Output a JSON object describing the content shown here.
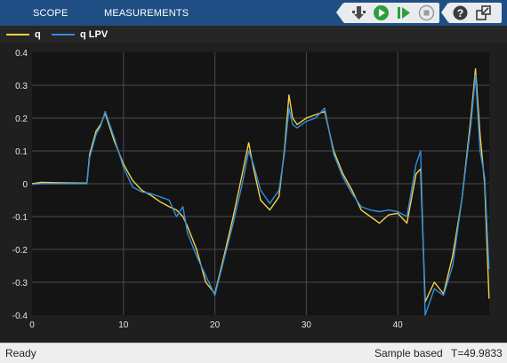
{
  "toolstrip": {
    "tabs": [
      {
        "label": "SCOPE"
      },
      {
        "label": "MEASUREMENTS"
      }
    ],
    "buttons": [
      {
        "name": "signal-select-icon",
        "color": "#4a4a4a"
      },
      {
        "name": "run-icon",
        "color": "#2e9e3e"
      },
      {
        "name": "step-forward-icon",
        "color": "#2e9e3e"
      },
      {
        "name": "stop-icon",
        "color": "#9a9a9a"
      },
      {
        "name": "help-icon",
        "color": "#3a3a3a"
      },
      {
        "name": "undock-icon",
        "color": "#3a3a3a"
      }
    ]
  },
  "legend": [
    {
      "label": "q",
      "color": "#f5d04a"
    },
    {
      "label": "q LPV",
      "color": "#2f8fe0"
    }
  ],
  "status": {
    "ready": "Ready",
    "mode": "Sample based",
    "time": "T=49.9833"
  },
  "chart_data": {
    "type": "line",
    "title": "",
    "xlabel": "",
    "ylabel": "",
    "xlim": [
      0,
      50
    ],
    "ylim": [
      -0.4,
      0.4
    ],
    "xticks": [
      0,
      10,
      20,
      30,
      40
    ],
    "yticks": [
      0.4,
      0.3,
      0.2,
      0.1,
      0,
      -0.1,
      -0.2,
      -0.3,
      -0.4
    ],
    "grid": true,
    "background": "#141414",
    "series": [
      {
        "name": "q",
        "color": "#f5d04a",
        "x": [
          0,
          1,
          3,
          6,
          6.3,
          7,
          7.5,
          8,
          9,
          10,
          11,
          12,
          13,
          14,
          15,
          15.8,
          16.5,
          17,
          18,
          19,
          20,
          21,
          22,
          23,
          23.7,
          24.2,
          25,
          26,
          27,
          27.6,
          28.1,
          28.5,
          29,
          30,
          31,
          32,
          33,
          34,
          35,
          36,
          37,
          38,
          39,
          40,
          41,
          42,
          42.5,
          43,
          44,
          45,
          46,
          47,
          48,
          48.5,
          49,
          49.5,
          49.98
        ],
        "y": [
          0,
          0.004,
          0.003,
          0.002,
          0.09,
          0.16,
          0.18,
          0.215,
          0.13,
          0.06,
          0.01,
          -0.02,
          -0.035,
          -0.055,
          -0.07,
          -0.08,
          -0.1,
          -0.13,
          -0.2,
          -0.3,
          -0.335,
          -0.22,
          -0.1,
          0.03,
          0.125,
          0.05,
          -0.05,
          -0.08,
          -0.04,
          0.1,
          0.27,
          0.2,
          0.18,
          0.2,
          0.21,
          0.22,
          0.1,
          0.03,
          -0.02,
          -0.08,
          -0.1,
          -0.12,
          -0.095,
          -0.09,
          -0.12,
          0.03,
          0.045,
          -0.36,
          -0.3,
          -0.335,
          -0.22,
          -0.05,
          0.2,
          0.35,
          0.15,
          0.0,
          -0.35
        ]
      },
      {
        "name": "q LPV",
        "color": "#2f8fe0",
        "x": [
          0,
          1,
          3,
          6,
          6.3,
          7,
          7.5,
          8,
          9,
          10,
          11,
          12,
          13,
          14,
          15,
          15.8,
          16.5,
          17,
          18,
          19,
          20,
          21,
          22,
          23,
          23.7,
          24.2,
          25,
          26,
          27,
          27.6,
          28.1,
          28.5,
          29,
          30,
          31,
          32,
          33,
          34,
          35,
          36,
          37,
          38,
          39,
          40,
          41,
          42,
          42.5,
          43,
          44,
          45,
          46,
          47,
          48,
          48.5,
          49,
          49.5,
          49.98
        ],
        "y": [
          -0.002,
          0,
          0,
          0,
          0.08,
          0.15,
          0.175,
          0.22,
          0.14,
          0.05,
          -0.01,
          -0.025,
          -0.03,
          -0.04,
          -0.05,
          -0.1,
          -0.07,
          -0.15,
          -0.22,
          -0.28,
          -0.34,
          -0.23,
          -0.12,
          0.0,
          0.1,
          0.06,
          -0.02,
          -0.06,
          -0.02,
          0.09,
          0.23,
          0.18,
          0.17,
          0.19,
          0.2,
          0.23,
          0.09,
          0.02,
          -0.03,
          -0.07,
          -0.08,
          -0.085,
          -0.08,
          -0.085,
          -0.1,
          0.06,
          0.1,
          -0.4,
          -0.32,
          -0.34,
          -0.25,
          -0.05,
          0.18,
          0.33,
          0.1,
          0.02,
          -0.26
        ]
      }
    ]
  }
}
